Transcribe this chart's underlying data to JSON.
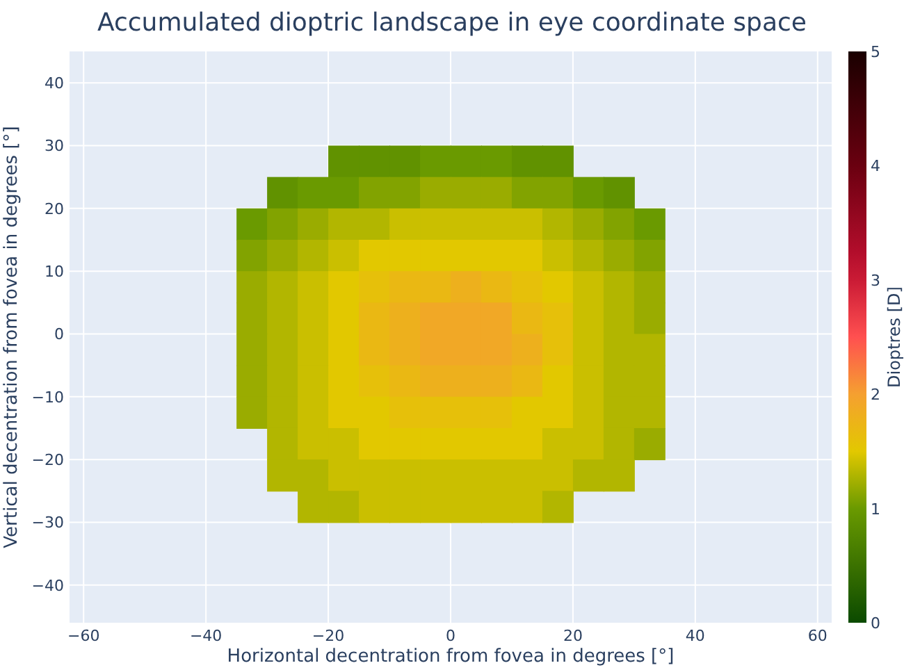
{
  "chart_data": {
    "type": "heatmap",
    "title": "Accumulated dioptric landscape in eye coordinate space",
    "xlabel": "Horizontal decentration from fovea in degrees [°]",
    "ylabel": "Vertical decentration from fovea in degrees [°]",
    "clabel": "Dioptres [D]",
    "x": [
      -32.5,
      -27.5,
      -22.5,
      -17.5,
      -12.5,
      -7.5,
      -2.5,
      2.5,
      7.5,
      12.5,
      17.5,
      22.5,
      27.5,
      32.5
    ],
    "y": [
      27.5,
      22.5,
      17.5,
      12.5,
      7.5,
      2.5,
      -2.5,
      -7.5,
      -12.5,
      -17.5,
      -22.5,
      -27.5
    ],
    "cells": [
      [
        null,
        null,
        null,
        0.9,
        0.9,
        0.9,
        1.0,
        1.0,
        1.0,
        0.9,
        0.9,
        null,
        null,
        null
      ],
      [
        null,
        0.9,
        1.0,
        1.0,
        1.1,
        1.1,
        1.2,
        1.2,
        1.2,
        1.1,
        1.1,
        1.0,
        0.9,
        null
      ],
      [
        1.0,
        1.1,
        1.2,
        1.3,
        1.3,
        1.4,
        1.4,
        1.4,
        1.4,
        1.4,
        1.3,
        1.2,
        1.1,
        1.0
      ],
      [
        1.1,
        1.2,
        1.3,
        1.4,
        1.5,
        1.5,
        1.5,
        1.5,
        1.5,
        1.5,
        1.4,
        1.3,
        1.2,
        1.1
      ],
      [
        1.2,
        1.3,
        1.4,
        1.5,
        1.6,
        1.7,
        1.7,
        1.8,
        1.7,
        1.6,
        1.5,
        1.4,
        1.3,
        1.2
      ],
      [
        1.2,
        1.3,
        1.4,
        1.5,
        1.7,
        1.8,
        1.9,
        1.9,
        1.9,
        1.7,
        1.6,
        1.4,
        1.3,
        1.2
      ],
      [
        1.2,
        1.3,
        1.4,
        1.5,
        1.7,
        1.8,
        1.9,
        1.9,
        1.9,
        1.8,
        1.6,
        1.4,
        1.3,
        1.3
      ],
      [
        1.2,
        1.3,
        1.4,
        1.5,
        1.6,
        1.7,
        1.8,
        1.8,
        1.8,
        1.7,
        1.5,
        1.4,
        1.3,
        1.3
      ],
      [
        1.2,
        1.3,
        1.4,
        1.5,
        1.5,
        1.6,
        1.6,
        1.6,
        1.6,
        1.5,
        1.5,
        1.4,
        1.3,
        1.3
      ],
      [
        null,
        1.3,
        1.4,
        1.4,
        1.5,
        1.5,
        1.5,
        1.5,
        1.5,
        1.5,
        1.4,
        1.4,
        1.3,
        1.2
      ],
      [
        null,
        1.3,
        1.3,
        1.4,
        1.4,
        1.4,
        1.4,
        1.4,
        1.4,
        1.4,
        1.4,
        1.3,
        1.3,
        null
      ],
      [
        null,
        null,
        1.3,
        1.3,
        1.4,
        1.4,
        1.4,
        1.4,
        1.4,
        1.4,
        1.3,
        null,
        null,
        null
      ]
    ],
    "xlim": [
      -62.3,
      62.3
    ],
    "ylim": [
      -46,
      45
    ],
    "xticks": [
      -60,
      -40,
      -20,
      0,
      20,
      40,
      60
    ],
    "yticks": [
      -40,
      -30,
      -20,
      -10,
      0,
      10,
      20,
      30,
      40
    ],
    "clim": [
      0,
      5
    ],
    "cticks": [
      0,
      1,
      2,
      3,
      4,
      5
    ],
    "grid": true
  }
}
